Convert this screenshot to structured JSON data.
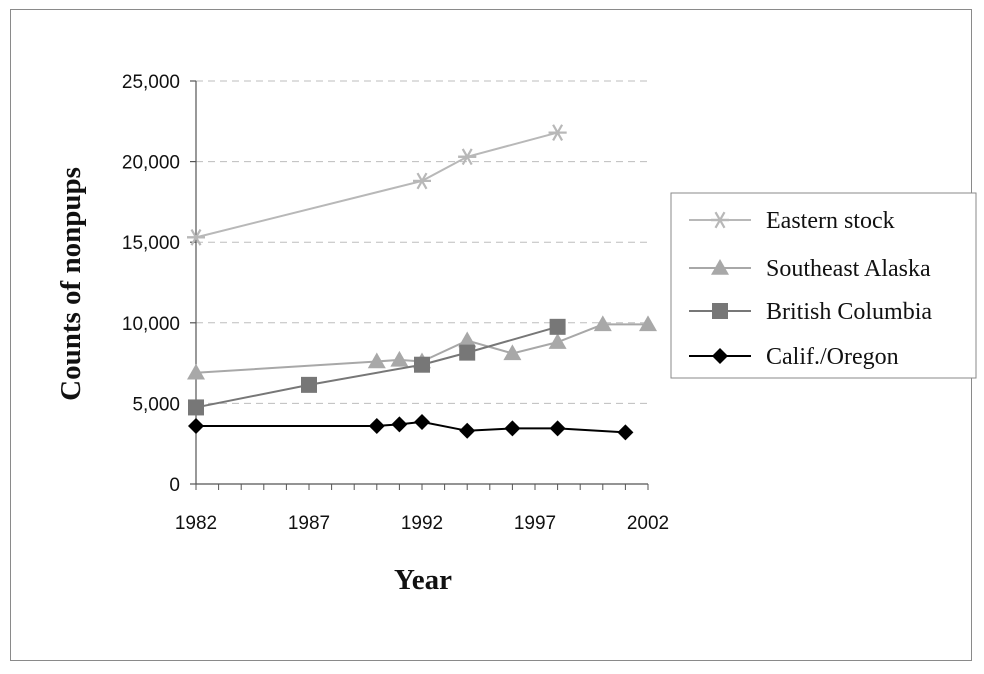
{
  "chart_data": {
    "type": "line",
    "title": "",
    "xlabel": "Year",
    "ylabel": "Counts of nonpups",
    "xlim": [
      1982,
      2002
    ],
    "ylim": [
      0,
      25000
    ],
    "x_ticks": [
      1982,
      1987,
      1992,
      1997,
      2002
    ],
    "y_ticks": [
      0,
      5000,
      10000,
      15000,
      20000,
      25000
    ],
    "x_tick_labels": [
      "1982",
      "1987",
      "1992",
      "1997",
      "2002"
    ],
    "y_tick_labels": [
      "0",
      "5,000",
      "10,000",
      "15,000",
      "20,000",
      "25,000"
    ],
    "grid": "horizontal dashed",
    "legend_position": "right",
    "series": [
      {
        "name": "Eastern stock",
        "marker": "asterisk",
        "color": "#b8b8b8",
        "x": [
          1982,
          1992,
          1994,
          1998
        ],
        "y": [
          15300,
          18800,
          20300,
          21800
        ]
      },
      {
        "name": "Southeast Alaska",
        "marker": "triangle",
        "color": "#a8a8a8",
        "x": [
          1982,
          1990,
          1991,
          1992,
          1994,
          1996,
          1998,
          2000,
          2002
        ],
        "y": [
          6900,
          7600,
          7700,
          7600,
          8900,
          8100,
          8800,
          9900,
          9900
        ]
      },
      {
        "name": "British Columbia",
        "marker": "square",
        "color": "#777777",
        "x": [
          1982,
          1987,
          1992,
          1994,
          1998
        ],
        "y": [
          4750,
          6150,
          7400,
          8150,
          9750
        ]
      },
      {
        "name": "Calif./Oregon",
        "marker": "diamond",
        "color": "#000000",
        "x": [
          1982,
          1990,
          1991,
          1992,
          1994,
          1996,
          1998,
          2001
        ],
        "y": [
          3600,
          3600,
          3700,
          3850,
          3300,
          3450,
          3450,
          3200
        ]
      }
    ]
  }
}
